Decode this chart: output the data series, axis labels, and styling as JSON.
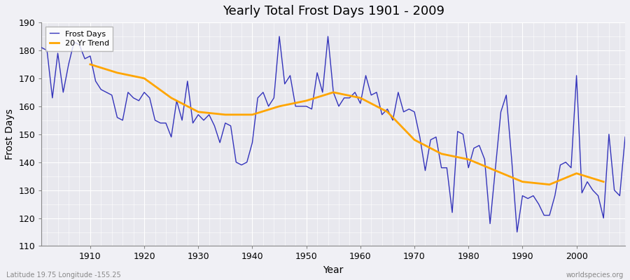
{
  "title": "Yearly Total Frost Days 1901 - 2009",
  "xlabel": "Year",
  "ylabel": "Frost Days",
  "subtitle": "Latitude 19.75 Longitude -155.25",
  "watermark": "worldspecies.org",
  "ylim": [
    110,
    190
  ],
  "xlim": [
    1901,
    2009
  ],
  "bg_color": "#f0f0f5",
  "plot_bg_color": "#e8e8ee",
  "line_color": "#3333bb",
  "trend_color": "#ffa500",
  "frost_days": [
    181,
    180,
    163,
    179,
    165,
    175,
    183,
    182,
    177,
    178,
    169,
    166,
    165,
    164,
    156,
    155,
    165,
    163,
    162,
    165,
    163,
    155,
    154,
    154,
    149,
    162,
    155,
    169,
    154,
    157,
    155,
    157,
    153,
    147,
    154,
    153,
    140,
    139,
    140,
    147,
    163,
    165,
    160,
    163,
    185,
    168,
    171,
    160,
    160,
    160,
    159,
    172,
    165,
    185,
    165,
    160,
    163,
    163,
    165,
    161,
    171,
    164,
    165,
    157,
    159,
    155,
    165,
    158,
    159,
    158,
    149,
    137,
    148,
    149,
    138,
    138,
    122,
    151,
    150,
    138,
    145,
    146,
    141,
    118,
    138,
    158,
    164,
    141,
    115,
    128,
    127,
    128,
    125,
    121,
    121,
    128,
    139,
    140,
    138,
    171,
    129,
    133,
    130,
    128,
    120,
    150,
    130,
    128,
    149
  ],
  "trend_years": [
    1910,
    1915,
    1920,
    1925,
    1930,
    1935,
    1940,
    1945,
    1950,
    1955,
    1960,
    1965,
    1970,
    1975,
    1980,
    1985,
    1990,
    1995,
    2000,
    2005
  ],
  "trend_values": [
    175,
    172,
    170,
    163,
    158,
    157,
    157,
    160,
    162,
    165,
    163,
    158,
    148,
    143,
    141,
    137,
    133,
    132,
    136,
    133
  ]
}
